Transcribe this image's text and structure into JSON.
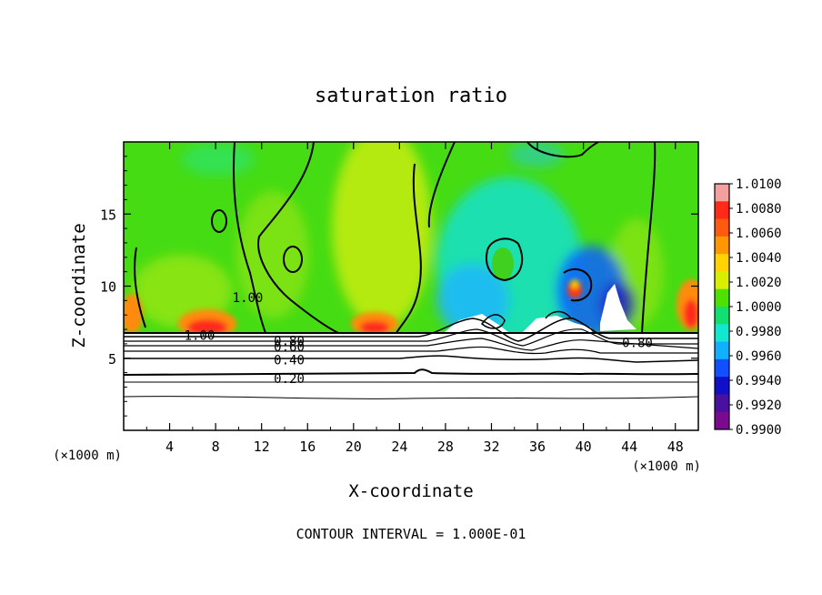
{
  "chart_data": {
    "type": "heatmap",
    "title": "saturation ratio",
    "xlabel": "X-coordinate",
    "ylabel": "Z-coordinate",
    "x_unit_label": "(×1000 m)",
    "y_unit_label": "(×1000 m)",
    "xlim": [
      0,
      50
    ],
    "ylim": [
      0,
      20
    ],
    "x_ticks": [
      4,
      8,
      12,
      16,
      20,
      24,
      28,
      32,
      36,
      40,
      44,
      48
    ],
    "y_ticks": [
      5,
      10,
      15
    ],
    "colorbar": {
      "min": 0.99,
      "max": 1.01,
      "tick_labels": [
        "1.0100",
        "1.0080",
        "1.0060",
        "1.0040",
        "1.0020",
        "1.0000",
        "0.9980",
        "0.9960",
        "0.9940",
        "0.9920",
        "0.9900"
      ],
      "colors": [
        "#f4a0a0",
        "#ff2a1a",
        "#ff5a10",
        "#ff9800",
        "#ffd400",
        "#d8f000",
        "#50e000",
        "#10e070",
        "#10e8d0",
        "#10b0ff",
        "#1050ff",
        "#1010c8",
        "#4a10a0",
        "#7a0a90"
      ]
    },
    "contour_labels": [
      {
        "text": "1.00",
        "x": 10.8,
        "z": 9.2
      },
      {
        "text": "1.00",
        "x": 6.6,
        "z": 6.6
      },
      {
        "text": "0.80",
        "x": 14.4,
        "z": 6.2
      },
      {
        "text": "0.60",
        "x": 14.4,
        "z": 5.8
      },
      {
        "text": "0.40",
        "x": 14.4,
        "z": 4.9
      },
      {
        "text": "0.20",
        "x": 14.4,
        "z": 3.6
      },
      {
        "text": "0.80",
        "x": 44.7,
        "z": 6.1
      }
    ],
    "contour_interval_text": "CONTOUR INTERVAL = 1.000E-01"
  }
}
